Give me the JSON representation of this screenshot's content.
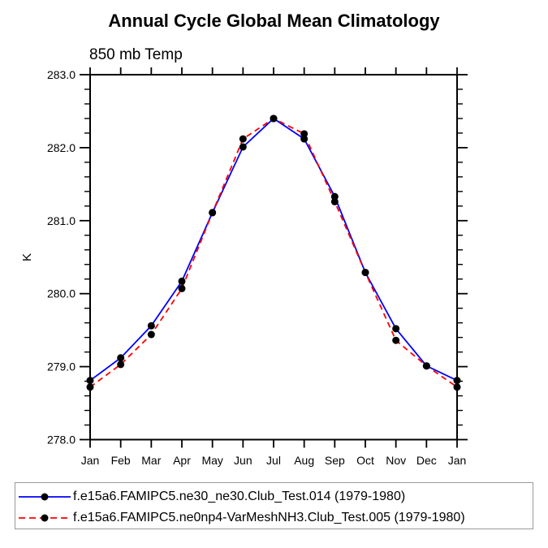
{
  "chart_data": {
    "type": "line",
    "title": "Annual Cycle Global Mean Climatology",
    "subtitle": "850 mb Temp",
    "xlabel": "",
    "ylabel": "K",
    "categories": [
      "Jan",
      "Feb",
      "Mar",
      "Apr",
      "May",
      "Jun",
      "Jul",
      "Aug",
      "Sep",
      "Oct",
      "Nov",
      "Dec",
      "Jan"
    ],
    "ylim": [
      278.0,
      283.0
    ],
    "y_major_tick_step": 1.0,
    "y_minor_tick_step": 0.2,
    "y_tick_label_decimals": 1,
    "grid": false,
    "plot_background": "#ffffff",
    "axis_color": "#000000",
    "marker_color": "#000000",
    "legend_position": "bottom",
    "series": [
      {
        "name": "f.e15a6.FAMIPC5.ne30_ne30.Club_Test.014 (1979-1980)",
        "line_color": "#0000ff",
        "line_style": "solid",
        "marker": "filled-circle",
        "values": [
          278.81,
          279.12,
          279.56,
          280.17,
          281.11,
          282.01,
          282.4,
          282.12,
          281.33,
          280.29,
          279.52,
          279.01,
          278.81
        ]
      },
      {
        "name": "f.e15a6.FAMIPC5.ne0np4-VarMeshNH3.Club_Test.005 (1979-1980)",
        "line_color": "#ff0000",
        "line_style": "dashed",
        "marker": "filled-circle",
        "values": [
          278.72,
          279.03,
          279.44,
          280.07,
          281.11,
          282.12,
          282.4,
          282.19,
          281.26,
          280.29,
          279.36,
          279.01,
          278.72
        ]
      }
    ]
  }
}
